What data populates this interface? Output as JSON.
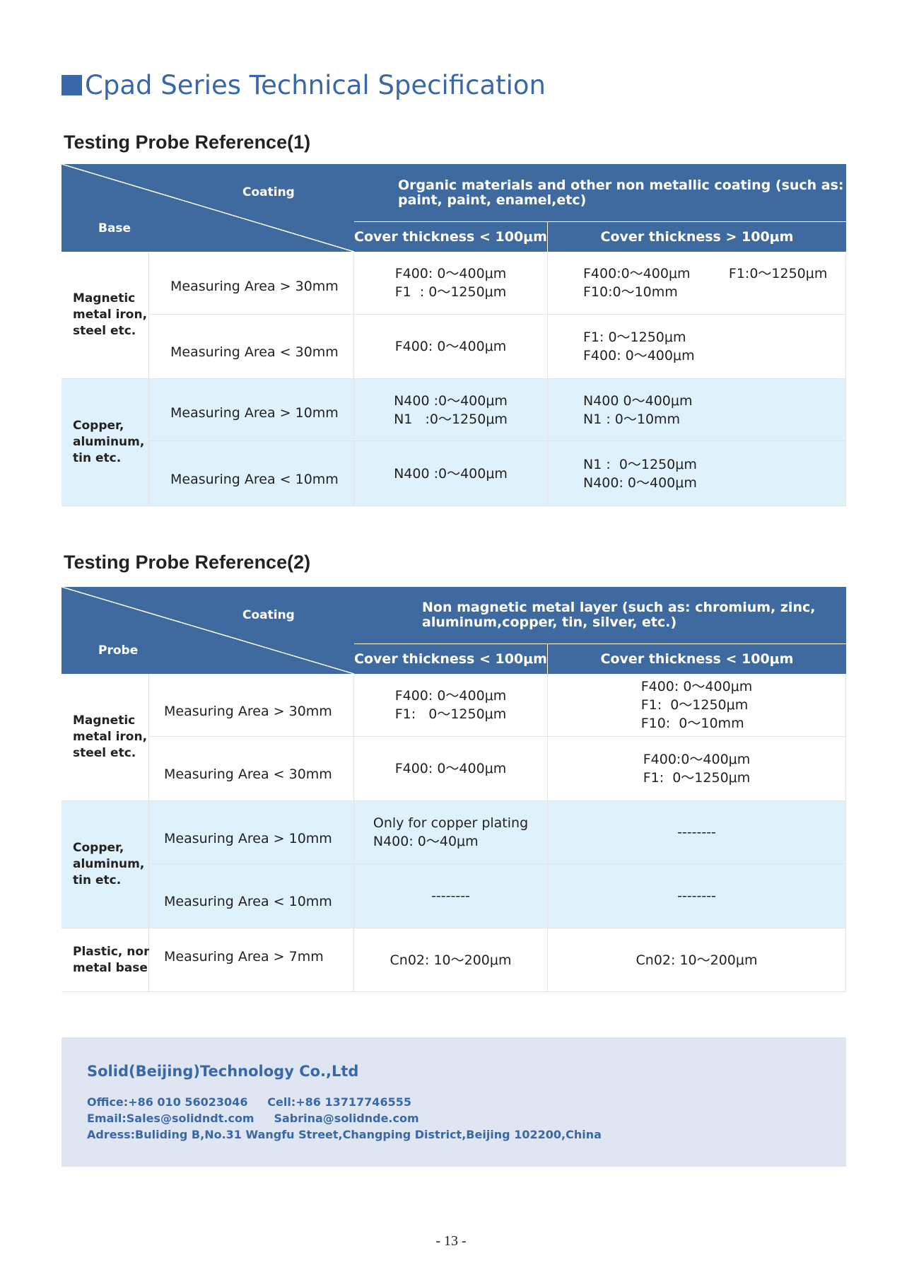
{
  "title": "Cpad Series Technical Specification",
  "table1": {
    "heading": "Testing Probe Reference(1)",
    "corner_top": "Coating",
    "corner_bottom": "Base",
    "group_header": "Organic materials and other non metallic coating (such as:\npaint, paint, enamel,etc)",
    "col1": "Cover thickness < 100μm",
    "col2": "Cover thickness > 100μm",
    "groups": [
      {
        "base": "Magnetic\nmetal iron,\nsteel etc."
      },
      {
        "base": "Copper,\naluminum,\ntin etc."
      }
    ],
    "rows": [
      {
        "area": "Measuring Area > 30mm",
        "c1": "F400: 0～400μm\nF1  : 0～1250μm",
        "c2": "F400:0～400μm         F1:0～1250μm\nF10:0～10mm"
      },
      {
        "area": "Measuring Area < 30mm",
        "c1": "F400: 0～400μm",
        "c2": "F1: 0～1250μm\nF400: 0～400μm"
      },
      {
        "area": "Measuring Area > 10mm",
        "c1": "N400 :0～400μm\nN1   :0～1250μm",
        "c2": "N400 0～400μm\nN1 : 0～10mm"
      },
      {
        "area": "Measuring Area < 10mm",
        "c1": "N400 :0～400μm",
        "c2": "N1 :  0～1250μm\nN400: 0～400μm"
      }
    ]
  },
  "table2": {
    "heading": "Testing Probe Reference(2)",
    "corner_top": "Coating",
    "corner_bottom": "Probe",
    "group_header": "Non magnetic metal layer (such as: chromium, zinc,\naluminum,copper, tin, silver, etc.)",
    "col1": "Cover thickness < 100μm",
    "col2": "Cover thickness < 100μm",
    "groups": [
      {
        "base": "Magnetic\nmetal iron,\nsteel etc."
      },
      {
        "base": "Copper,\naluminum,\ntin etc."
      },
      {
        "base": "Plastic, non\nmetal base"
      }
    ],
    "rows": [
      {
        "area": "Measuring Area > 30mm",
        "c1": "F400: 0～400μm\nF1:   0～1250μm",
        "c2": "F400: 0～400μm\nF1:  0～1250μm\nF10:  0～10mm"
      },
      {
        "area": "Measuring Area < 30mm",
        "c1": "F400: 0～400μm",
        "c2": "F400:0～400μm\nF1:  0～1250μm"
      },
      {
        "area": "Measuring Area > 10mm",
        "c1": "Only for copper plating\nN400: 0～40μm",
        "c2": "--------"
      },
      {
        "area": "Measuring Area < 10mm",
        "c1": "--------",
        "c2": "--------"
      },
      {
        "area": "Measuring Area > 7mm",
        "c1": "Cn02: 10～200μm",
        "c2": "Cn02: 10～200μm"
      }
    ]
  },
  "footer": {
    "company": "Solid(Beijing)Technology Co.,Ltd",
    "line1": "Office:+86 010 56023046     Cell:+86 13717746555",
    "line2": "Email:Sales@solidndt.com     Sabrina@solidnde.com",
    "line3": "Adress:Buliding B,No.31 Wangfu Street,Changping District,Beijing 102200,China"
  },
  "page_number": "- 13 -",
  "colors": {
    "accent": "#3a68a6",
    "header": "#3e6a9f",
    "row_highlight": "#dff1fb",
    "footer_bg": "#dfe6f2"
  }
}
